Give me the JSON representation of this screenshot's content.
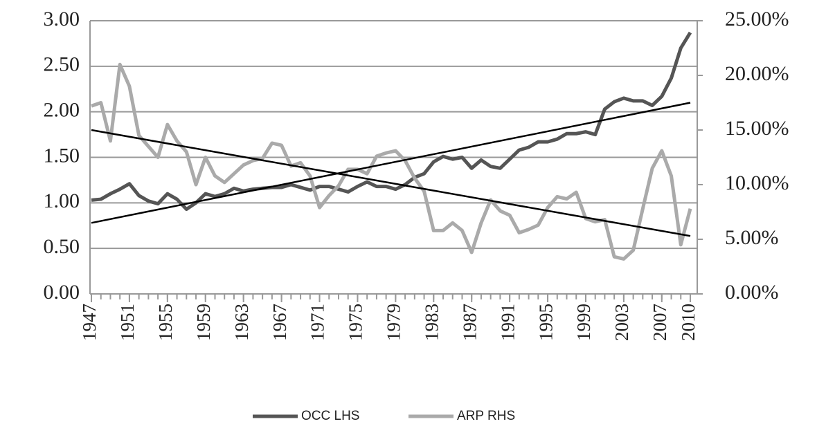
{
  "chart_data": {
    "type": "line",
    "x": [
      1947,
      1948,
      1949,
      1950,
      1951,
      1952,
      1953,
      1954,
      1955,
      1956,
      1957,
      1958,
      1959,
      1960,
      1961,
      1962,
      1963,
      1964,
      1965,
      1966,
      1967,
      1968,
      1969,
      1970,
      1971,
      1972,
      1973,
      1974,
      1975,
      1976,
      1977,
      1978,
      1979,
      1980,
      1981,
      1982,
      1983,
      1984,
      1985,
      1986,
      1987,
      1988,
      1989,
      1990,
      1991,
      1992,
      1993,
      1994,
      1995,
      1996,
      1997,
      1998,
      1999,
      2000,
      2001,
      2002,
      2003,
      2004,
      2005,
      2006,
      2007,
      2008,
      2009,
      2010
    ],
    "series": [
      {
        "name": "OCC LHS",
        "color": "#555555",
        "axis": "y",
        "values": [
          1.03,
          1.04,
          1.1,
          1.15,
          1.21,
          1.08,
          1.02,
          0.99,
          1.1,
          1.04,
          0.93,
          1.0,
          1.1,
          1.07,
          1.1,
          1.16,
          1.13,
          1.15,
          1.16,
          1.17,
          1.17,
          1.2,
          1.17,
          1.14,
          1.18,
          1.18,
          1.15,
          1.12,
          1.18,
          1.23,
          1.18,
          1.18,
          1.15,
          1.2,
          1.28,
          1.32,
          1.45,
          1.51,
          1.48,
          1.5,
          1.38,
          1.47,
          1.4,
          1.38,
          1.48,
          1.58,
          1.61,
          1.67,
          1.67,
          1.7,
          1.76,
          1.76,
          1.78,
          1.75,
          2.03,
          2.11,
          2.15,
          2.12,
          2.12,
          2.07,
          2.17,
          2.37,
          2.7,
          2.87
        ]
      },
      {
        "name": "ARP RHS",
        "color": "#aaaaaa",
        "axis": "y2",
        "values": [
          17.2,
          17.5,
          14.0,
          21.0,
          19.0,
          14.5,
          13.5,
          12.5,
          15.5,
          14.0,
          13.0,
          10.0,
          12.5,
          10.8,
          10.2,
          11.0,
          11.8,
          12.2,
          12.4,
          13.8,
          13.6,
          11.7,
          12.0,
          10.8,
          7.9,
          9.0,
          9.9,
          11.4,
          11.4,
          11.0,
          12.6,
          12.9,
          13.1,
          12.2,
          10.6,
          9.4,
          5.8,
          5.8,
          6.5,
          5.8,
          3.8,
          6.5,
          8.6,
          7.6,
          7.2,
          5.6,
          5.9,
          6.3,
          7.9,
          8.9,
          8.7,
          9.3,
          6.9,
          6.6,
          6.8,
          3.4,
          3.2,
          4.0,
          7.8,
          11.5,
          13.1,
          10.8,
          4.5,
          7.8
        ]
      }
    ],
    "trendlines": [
      {
        "axis": "y",
        "color": "#000000",
        "x": [
          1947,
          2010
        ],
        "values": [
          0.78,
          2.1
        ]
      },
      {
        "axis": "y2",
        "color": "#000000",
        "x": [
          1947,
          2010
        ],
        "values": [
          15.0,
          5.3
        ]
      }
    ],
    "xlim": [
      1947,
      2010
    ],
    "xticks": [
      1947,
      1951,
      1955,
      1959,
      1963,
      1967,
      1971,
      1975,
      1979,
      1983,
      1987,
      1991,
      1995,
      1999,
      2003,
      2007,
      2010
    ],
    "ylim": [
      0,
      3
    ],
    "yticks": [
      {
        "value": 0,
        "label": "0.00"
      },
      {
        "value": 0.5,
        "label": "0.50"
      },
      {
        "value": 1,
        "label": "1.00"
      },
      {
        "value": 1.5,
        "label": "1.50"
      },
      {
        "value": 2,
        "label": "2.00"
      },
      {
        "value": 2.5,
        "label": "2.50"
      },
      {
        "value": 3,
        "label": "3.00"
      }
    ],
    "y2lim": [
      0,
      25
    ],
    "y2ticks": [
      {
        "value": 0,
        "label": "0.00%"
      },
      {
        "value": 5,
        "label": "5.00%"
      },
      {
        "value": 10,
        "label": "10.00%"
      },
      {
        "value": 15,
        "label": "15.00%"
      },
      {
        "value": 20,
        "label": "20.00%"
      },
      {
        "value": 25,
        "label": "25.00%"
      }
    ],
    "grid": true,
    "legend": "bottom"
  }
}
